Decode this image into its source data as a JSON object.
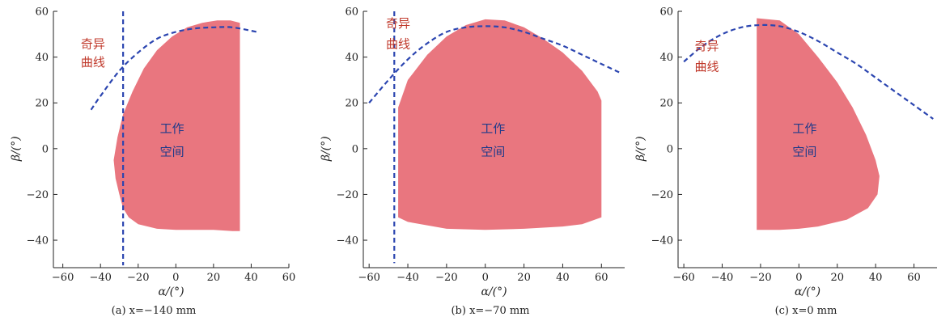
{
  "colors": {
    "workspace_fill": "#e9767f",
    "singular_line": "#2b45b0",
    "axis": "#222222"
  },
  "chart_data": [
    {
      "type": "area",
      "caption": "(a) x=−140 mm",
      "xlabel": "α/(°)",
      "ylabel": "β/(°)",
      "xlim": [
        -65,
        60
      ],
      "ylim": [
        -52,
        60
      ],
      "xticks": [
        -60,
        -40,
        -20,
        0,
        20,
        40,
        60
      ],
      "yticks": [
        -40,
        -20,
        0,
        20,
        40,
        60
      ],
      "annotations": {
        "singular": "奇异曲线",
        "workspace": "工作空间"
      },
      "series": [
        {
          "role": "workspace",
          "x": [
            34,
            29,
            22,
            14,
            6,
            -2,
            -10,
            -17,
            -23,
            -28,
            -31,
            -33,
            -32,
            -30,
            -28,
            -25,
            -20,
            -10,
            0,
            10,
            20,
            30,
            34
          ],
          "y": [
            55,
            56,
            56,
            55,
            53,
            49,
            43,
            35,
            25,
            15,
            5,
            -5,
            -13,
            -20,
            -26,
            -30,
            -33,
            -35,
            -35.5,
            -35.5,
            -35.5,
            -36,
            -36
          ]
        },
        {
          "role": "singular-curve",
          "x": [
            -45,
            -40,
            -30,
            -20,
            -10,
            0,
            10,
            20,
            30,
            43
          ],
          "y": [
            17,
            23,
            34,
            42,
            48,
            51,
            52.5,
            53,
            53,
            51
          ]
        },
        {
          "role": "singular-line",
          "x": [
            -28,
            -28
          ],
          "y": [
            60,
            -51
          ]
        }
      ]
    },
    {
      "type": "area",
      "caption": "(b) x=−70 mm",
      "xlabel": "α/(°)",
      "ylabel": "β/(°)",
      "xlim": [
        -63,
        72
      ],
      "ylim": [
        -52,
        60
      ],
      "xticks": [
        -60,
        -40,
        -20,
        0,
        20,
        40,
        60
      ],
      "yticks": [
        -40,
        -20,
        0,
        20,
        40,
        60
      ],
      "annotations": {
        "singular": "奇异曲线",
        "workspace": "工作空间"
      },
      "series": [
        {
          "role": "workspace",
          "x": [
            -45,
            -40,
            -30,
            -20,
            -10,
            0,
            10,
            20,
            30,
            40,
            50,
            58,
            60,
            60,
            50,
            40,
            20,
            0,
            -20,
            -40,
            -45
          ],
          "y": [
            18,
            30,
            41,
            49,
            54,
            56.5,
            56,
            53,
            48,
            42,
            34,
            25,
            21,
            -30,
            -33,
            -34,
            -35,
            -35.5,
            -35,
            -32,
            -30
          ]
        },
        {
          "role": "singular-curve",
          "x": [
            -60,
            -50,
            -40,
            -30,
            -20,
            -10,
            0,
            10,
            20,
            30,
            40,
            50,
            60,
            70
          ],
          "y": [
            20,
            30,
            39,
            46,
            51,
            53,
            53.5,
            53,
            51,
            48,
            45,
            41,
            37,
            33
          ]
        },
        {
          "role": "singular-line",
          "x": [
            -47,
            -47
          ],
          "y": [
            60,
            -50
          ]
        }
      ]
    },
    {
      "type": "area",
      "caption": "(c) x=0 mm",
      "xlabel": "α/(°)",
      "ylabel": "β/(°)",
      "xlim": [
        -63,
        72
      ],
      "ylim": [
        -52,
        60
      ],
      "xticks": [
        -60,
        -40,
        -20,
        0,
        20,
        40,
        60
      ],
      "yticks": [
        -40,
        -20,
        0,
        20,
        40,
        60
      ],
      "annotations": {
        "singular": "奇异曲线",
        "workspace": "工作空间"
      },
      "series": [
        {
          "role": "workspace",
          "x": [
            -22,
            -10,
            0,
            10,
            20,
            28,
            35,
            40,
            42,
            41,
            36,
            25,
            10,
            0,
            -10,
            -22
          ],
          "y": [
            57,
            56,
            50,
            40,
            29,
            18,
            6,
            -5,
            -12,
            -20,
            -26,
            -31,
            -34,
            -35,
            -35.5,
            -35.5
          ]
        },
        {
          "role": "singular-curve",
          "x": [
            -60,
            -50,
            -40,
            -30,
            -20,
            -10,
            0,
            10,
            20,
            30,
            40,
            50,
            60,
            70
          ],
          "y": [
            38,
            45,
            50,
            53,
            54,
            53.5,
            51,
            47,
            42,
            37,
            31,
            25,
            19,
            13
          ]
        }
      ]
    }
  ]
}
